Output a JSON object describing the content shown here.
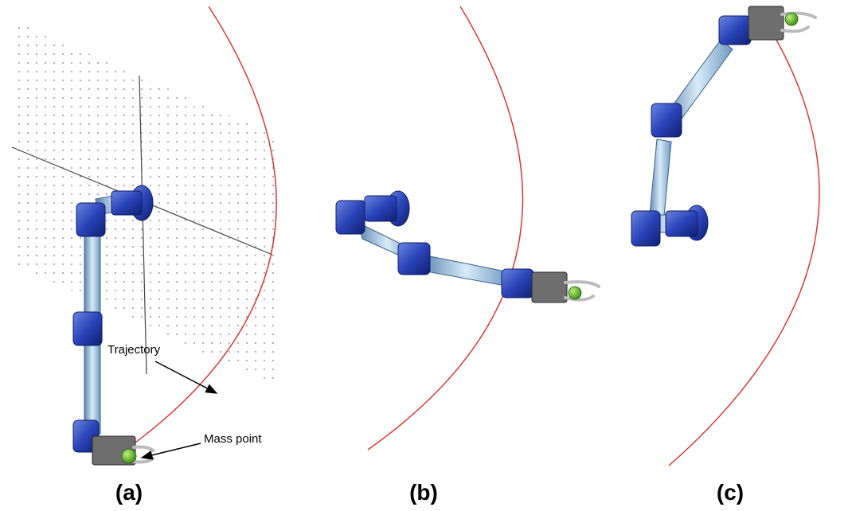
{
  "annotations": {
    "trajectory": "Trajectory",
    "mass_point": "Mass point"
  },
  "panels": [
    {
      "label": "(a)"
    },
    {
      "label": "(b)"
    },
    {
      "label": "(c)"
    }
  ]
}
